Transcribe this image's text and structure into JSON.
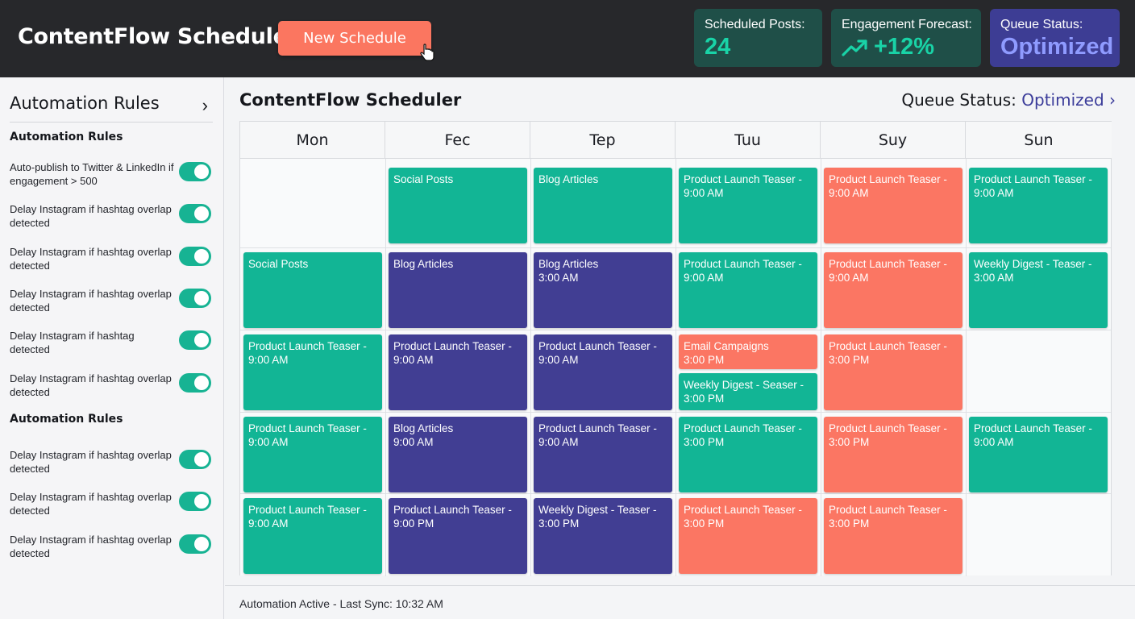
{
  "header": {
    "app_title": "ContentFlow Scheduler",
    "new_schedule_label": "New Schedule",
    "stats": {
      "scheduled_posts": {
        "label": "Scheduled Posts:",
        "value": "24"
      },
      "engagement_forecast": {
        "label": "Engagement Forecast:",
        "value": "+12%",
        "icon": "trend-up-icon"
      },
      "queue_status": {
        "label": "Queue Status:",
        "value": "Optimized"
      }
    }
  },
  "sidebar": {
    "title": "Automation Rules",
    "sections": [
      {
        "title": "Automation Rules",
        "rules": [
          {
            "text": "Auto-publish to Twitter & LinkedIn if engagement > 500",
            "enabled": true
          },
          {
            "text": "Delay Instagram if hashtag overlap detected",
            "enabled": true
          },
          {
            "text": "Delay Instagram if hashtag overlap detected",
            "enabled": true
          },
          {
            "text": "Delay Instagram if hashtag overlap detected",
            "enabled": true
          },
          {
            "text": "Delay Instagram if hashtag detected",
            "enabled": true
          },
          {
            "text": "Delay Instagram if hashtag overlap detected",
            "enabled": true
          }
        ]
      },
      {
        "title": "Automation Rules",
        "rules": [
          {
            "text": "Delay Instagram if hashtag overlap detected",
            "enabled": true
          },
          {
            "text": "Delay Instagram if hashtag overlap detected",
            "enabled": true
          },
          {
            "text": "Delay Instagram if hashtag overlap detected",
            "enabled": true
          }
        ]
      }
    ]
  },
  "main": {
    "title": "ContentFlow Scheduler",
    "queue_label": "Queue Status:",
    "queue_value": "Optimized",
    "days": [
      "Mon",
      "Fec",
      "Tep",
      "Tuu",
      "Suy",
      "Sun"
    ],
    "events": [
      {
        "day": 1,
        "row": 0,
        "color": "teal",
        "title": "Social Posts",
        "time": ""
      },
      {
        "day": 2,
        "row": 0,
        "color": "teal",
        "title": "Blog Articles",
        "time": ""
      },
      {
        "day": 3,
        "row": 0,
        "color": "teal",
        "title": "Product Launch Teaser -",
        "time": "9:00 AM"
      },
      {
        "day": 4,
        "row": 0,
        "color": "coral",
        "title": "Product Launch Teaser -",
        "time": "9:00 AM"
      },
      {
        "day": 5,
        "row": 0,
        "color": "teal",
        "title": "Product Launch Teaser -",
        "time": "9:00 AM"
      },
      {
        "day": 0,
        "row": 1,
        "color": "teal",
        "title": "Social Posts",
        "time": ""
      },
      {
        "day": 1,
        "row": 1,
        "color": "purple",
        "title": "Blog Articles",
        "time": ""
      },
      {
        "day": 2,
        "row": 1,
        "color": "purple",
        "title": "Blog Articles",
        "time": "3:00 AM"
      },
      {
        "day": 3,
        "row": 1,
        "color": "teal",
        "title": "Product Launch Teaser -",
        "time": "9:00 AM"
      },
      {
        "day": 4,
        "row": 1,
        "color": "coral",
        "title": "Product Launch Teaser -",
        "time": "9:00 AM"
      },
      {
        "day": 5,
        "row": 1,
        "color": "teal",
        "title": "Weekly Digest - Teaser -",
        "time": "3:00 AM"
      },
      {
        "day": 0,
        "row": 2,
        "color": "teal",
        "title": "Product Launch Teaser -",
        "time": "9:00 AM"
      },
      {
        "day": 1,
        "row": 2,
        "color": "purple",
        "title": "Product Launch Teaser -",
        "time": "9:00 AM"
      },
      {
        "day": 2,
        "row": 2,
        "color": "purple",
        "title": "Product Launch Teaser -",
        "time": "9:00 AM"
      },
      {
        "day": 3,
        "row": 2,
        "half": "top",
        "color": "coral",
        "title": "Email Campaigns",
        "time": "3:00 PM"
      },
      {
        "day": 3,
        "row": 2,
        "half": "bottom",
        "color": "teal",
        "title": "Weekly Digest - Seaser -",
        "time": "3:00 PM"
      },
      {
        "day": 4,
        "row": 2,
        "color": "coral",
        "title": "Product Launch Teaser -",
        "time": "3:00 PM"
      },
      {
        "day": 0,
        "row": 3,
        "color": "teal",
        "title": "Product Launch Teaser -",
        "time": "9:00 AM"
      },
      {
        "day": 1,
        "row": 3,
        "color": "purple",
        "title": "Blog Articles",
        "time": "9:00 AM"
      },
      {
        "day": 2,
        "row": 3,
        "color": "purple",
        "title": "Product Launch Teaser -",
        "time": "9:00 AM"
      },
      {
        "day": 3,
        "row": 3,
        "color": "teal",
        "title": "Product Launch Teaser -",
        "time": "3:00 PM"
      },
      {
        "day": 4,
        "row": 3,
        "color": "coral",
        "title": "Product Launch Teaser -",
        "time": "3:00 PM"
      },
      {
        "day": 5,
        "row": 3,
        "color": "teal",
        "title": "Product Launch Teaser -",
        "time": "9:00 AM"
      },
      {
        "day": 0,
        "row": 4,
        "color": "teal",
        "title": "Product Launch Teaser -",
        "time": "9:00 AM"
      },
      {
        "day": 1,
        "row": 4,
        "color": "purple",
        "title": "Product Launch Teaser -",
        "time": "9:00 PM"
      },
      {
        "day": 2,
        "row": 4,
        "color": "purple",
        "title": "Weekly Digest - Teaser -",
        "time": "3:00 PM"
      },
      {
        "day": 3,
        "row": 4,
        "color": "coral",
        "title": "Product Launch Teaser -",
        "time": "3:00 PM"
      },
      {
        "day": 4,
        "row": 4,
        "color": "coral",
        "title": "Product Launch Teaser -",
        "time": "3:00 PM"
      }
    ]
  },
  "footer": {
    "status_text": "Automation Active - Last Sync: 10:32 AM"
  },
  "colors": {
    "teal": "#12b595",
    "purple": "#413e93",
    "coral": "#fb7663",
    "topbar": "#27282b"
  }
}
